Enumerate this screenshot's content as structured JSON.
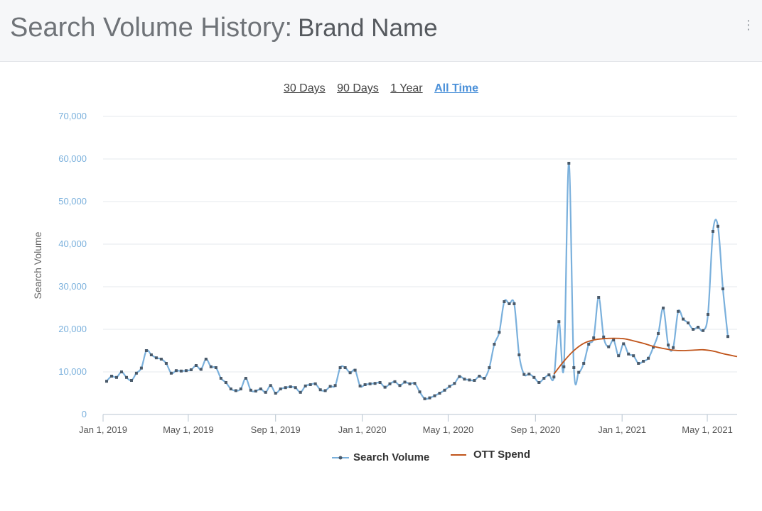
{
  "header": {
    "title": "Search Volume History:",
    "subtitle": "Brand Name",
    "menu_icon": "kebab-menu-icon"
  },
  "ranges": [
    {
      "label": "30 Days",
      "active": false
    },
    {
      "label": "90 Days",
      "active": false
    },
    {
      "label": "1 Year",
      "active": false
    },
    {
      "label": "All Time",
      "active": true
    }
  ],
  "chart_data": {
    "type": "line",
    "ylabel": "Search Volume",
    "xlabel": "",
    "ylim": [
      0,
      70000
    ],
    "y_ticks": [
      "0",
      "10,000",
      "20,000",
      "30,000",
      "40,000",
      "50,000",
      "60,000",
      "70,000"
    ],
    "x_ticks": [
      {
        "label": "Jan 1, 2019",
        "date": "2019-01-01"
      },
      {
        "label": "May 1, 2019",
        "date": "2019-05-01"
      },
      {
        "label": "Sep 1, 2019",
        "date": "2019-09-01"
      },
      {
        "label": "Jan 1, 2020",
        "date": "2020-01-01"
      },
      {
        "label": "May 1, 2020",
        "date": "2020-05-01"
      },
      {
        "label": "Sep 1, 2020",
        "date": "2020-09-01"
      },
      {
        "label": "Jan 1, 2021",
        "date": "2021-01-01"
      },
      {
        "label": "May 1, 2021",
        "date": "2021-05-01"
      }
    ],
    "xlim": [
      "2019-01-01",
      "2021-06-12"
    ],
    "grid": true,
    "legend_position": "bottom",
    "colors": {
      "search": "#7ab0dc",
      "marker": "#4a5a6a",
      "ott": "#c0541a",
      "axis_text": "#7ab0dc",
      "grid": "#e4e8ec"
    },
    "series": [
      {
        "name": "Search Volume",
        "x": [
          "2019-01-06",
          "2019-01-13",
          "2019-01-20",
          "2019-01-27",
          "2019-02-03",
          "2019-02-10",
          "2019-02-17",
          "2019-02-24",
          "2019-03-03",
          "2019-03-10",
          "2019-03-17",
          "2019-03-24",
          "2019-03-31",
          "2019-04-07",
          "2019-04-14",
          "2019-04-21",
          "2019-04-28",
          "2019-05-05",
          "2019-05-12",
          "2019-05-19",
          "2019-05-26",
          "2019-06-02",
          "2019-06-09",
          "2019-06-16",
          "2019-06-23",
          "2019-06-30",
          "2019-07-07",
          "2019-07-14",
          "2019-07-21",
          "2019-07-28",
          "2019-08-04",
          "2019-08-11",
          "2019-08-18",
          "2019-08-25",
          "2019-09-01",
          "2019-09-08",
          "2019-09-15",
          "2019-09-22",
          "2019-09-29",
          "2019-10-06",
          "2019-10-13",
          "2019-10-20",
          "2019-10-27",
          "2019-11-03",
          "2019-11-10",
          "2019-11-17",
          "2019-11-24",
          "2019-12-01",
          "2019-12-08",
          "2019-12-15",
          "2019-12-22",
          "2019-12-29",
          "2020-01-05",
          "2020-01-12",
          "2020-01-19",
          "2020-01-26",
          "2020-02-02",
          "2020-02-09",
          "2020-02-16",
          "2020-02-23",
          "2020-03-01",
          "2020-03-08",
          "2020-03-15",
          "2020-03-22",
          "2020-03-29",
          "2020-04-05",
          "2020-04-12",
          "2020-04-19",
          "2020-04-26",
          "2020-05-03",
          "2020-05-10",
          "2020-05-17",
          "2020-05-24",
          "2020-05-31",
          "2020-06-07",
          "2020-06-14",
          "2020-06-21",
          "2020-06-28",
          "2020-07-05",
          "2020-07-12",
          "2020-07-19",
          "2020-07-26",
          "2020-08-02",
          "2020-08-09",
          "2020-08-16",
          "2020-08-23",
          "2020-08-30",
          "2020-09-06",
          "2020-09-13",
          "2020-09-20",
          "2020-09-27",
          "2020-10-04",
          "2020-10-11",
          "2020-10-18",
          "2020-10-25",
          "2020-11-01",
          "2020-11-08",
          "2020-11-15",
          "2020-11-22",
          "2020-11-29",
          "2020-12-06",
          "2020-12-13",
          "2020-12-20",
          "2020-12-27",
          "2021-01-03",
          "2021-01-10",
          "2021-01-17",
          "2021-01-24",
          "2021-01-31",
          "2021-02-07",
          "2021-02-14",
          "2021-02-21",
          "2021-02-28",
          "2021-03-07",
          "2021-03-14",
          "2021-03-21",
          "2021-03-28",
          "2021-04-04",
          "2021-04-11",
          "2021-04-18",
          "2021-04-25",
          "2021-05-02",
          "2021-05-09",
          "2021-05-16",
          "2021-05-23",
          "2021-05-30"
        ],
        "y": [
          7800,
          9000,
          8700,
          10000,
          8700,
          8000,
          9700,
          10900,
          15000,
          14000,
          13300,
          13000,
          12000,
          9700,
          10300,
          10200,
          10300,
          10500,
          11500,
          10600,
          13000,
          11200,
          11000,
          8500,
          7500,
          6000,
          5600,
          6000,
          8500,
          5700,
          5500,
          6000,
          5200,
          6800,
          5000,
          6000,
          6300,
          6500,
          6300,
          5200,
          6700,
          7000,
          7200,
          5800,
          5600,
          6600,
          6800,
          11000,
          11000,
          9800,
          10400,
          6700,
          7000,
          7200,
          7300,
          7500,
          6400,
          7200,
          7700,
          6800,
          7600,
          7200,
          7300,
          5300,
          3700,
          3900,
          4400,
          5000,
          5700,
          6600,
          7300,
          8900,
          8300,
          8100,
          8000,
          9000,
          8500,
          11000,
          16500,
          19300,
          26500,
          26000,
          26000,
          14000,
          9400,
          9500,
          8700,
          7500,
          8500,
          9300,
          8800,
          21800,
          11200,
          59000,
          11000,
          9900,
          12000,
          16500,
          18000,
          27500,
          18200,
          15900,
          17500,
          13800,
          16600,
          14200,
          13800,
          12000,
          12500,
          13200,
          15800,
          19000,
          25000,
          16300,
          15700,
          24200,
          22400,
          21500,
          20000,
          20500,
          19700,
          23500,
          43000,
          44200,
          29500,
          18300
        ]
      },
      {
        "name": "OTT Spend",
        "x": [
          "2020-09-27",
          "2020-10-11",
          "2020-10-25",
          "2020-11-08",
          "2020-11-22",
          "2020-12-06",
          "2020-12-20",
          "2021-01-03",
          "2021-01-17",
          "2021-01-31",
          "2021-02-14",
          "2021-02-28",
          "2021-03-14",
          "2021-03-28",
          "2021-04-11",
          "2021-04-25",
          "2021-05-09",
          "2021-05-23",
          "2021-06-06",
          "2021-06-12"
        ],
        "y": [
          9500,
          12500,
          15000,
          16700,
          17500,
          17800,
          17900,
          17800,
          17300,
          16700,
          16000,
          15500,
          15100,
          15000,
          15100,
          15200,
          14900,
          14300,
          13800,
          13600
        ]
      }
    ]
  }
}
